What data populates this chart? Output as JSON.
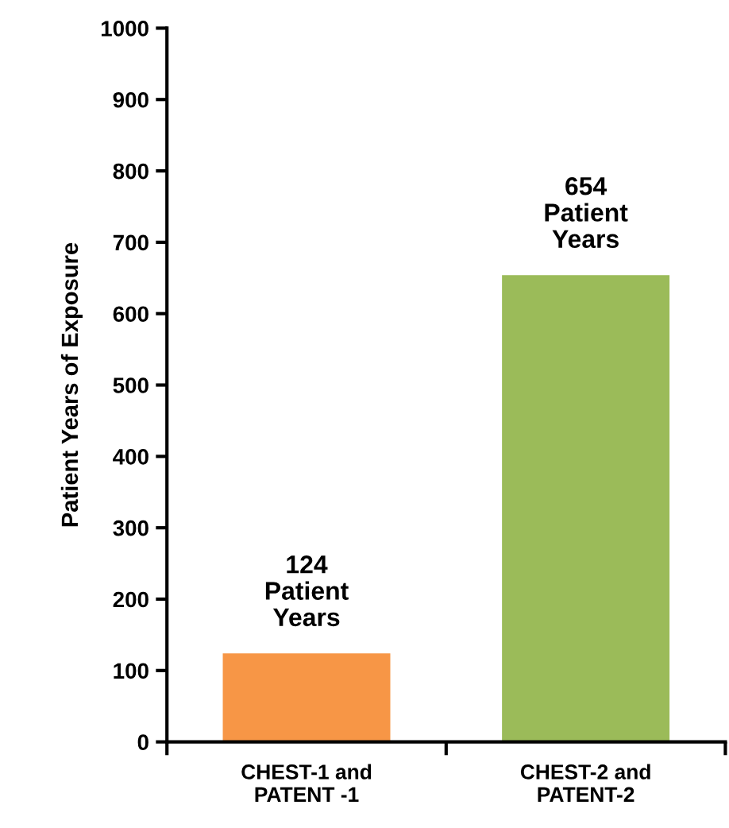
{
  "chart_data": {
    "type": "bar",
    "ylabel": "Patient Years of Exposure",
    "categories": [
      "CHEST-1 and\nPATENT -1",
      "CHEST-2 and\nPATENT-2"
    ],
    "values": [
      124,
      654
    ],
    "colors": [
      "#f79646",
      "#9bbb59"
    ],
    "value_labels": [
      "124\nPatient\nYears",
      "654\nPatient\nYears"
    ],
    "ylim": [
      0,
      1000
    ],
    "yticks": [
      0,
      100,
      200,
      300,
      400,
      500,
      600,
      700,
      800,
      900,
      1000
    ],
    "grid": false,
    "legend": false
  }
}
